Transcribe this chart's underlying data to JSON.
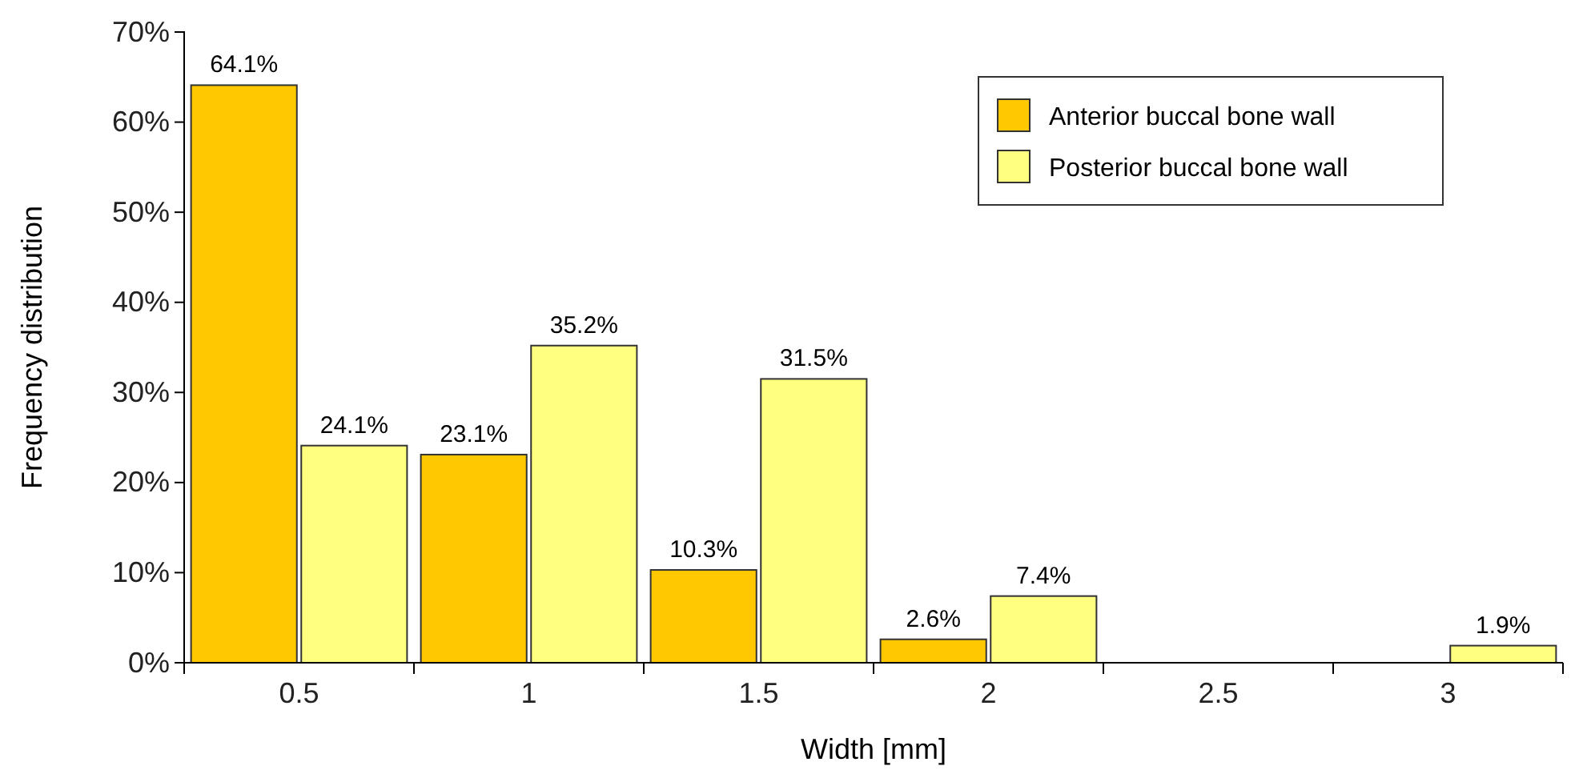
{
  "chart_data": {
    "type": "bar",
    "xlabel": "Width [mm]",
    "ylabel": "Frequency distribution",
    "categories": [
      "0.5",
      "1",
      "1.5",
      "2",
      "2.5",
      "3"
    ],
    "series": [
      {
        "name": "Anterior buccal bone wall",
        "color": "#ffc800",
        "values": [
          64.1,
          23.1,
          10.3,
          2.6,
          null,
          null
        ],
        "value_labels": [
          "64.1%",
          "23.1%",
          "10.3%",
          "2.6%",
          null,
          null
        ]
      },
      {
        "name": "Posterior buccal bone wall",
        "color": "#ffff80",
        "values": [
          24.1,
          35.2,
          31.5,
          7.4,
          null,
          1.9
        ],
        "value_labels": [
          "24.1%",
          "35.2%",
          "31.5%",
          "7.4%",
          null,
          "1.9%"
        ]
      }
    ],
    "ylim": [
      0,
      70
    ],
    "yticks": [
      {
        "value": 0,
        "label": "0%"
      },
      {
        "value": 10,
        "label": "10%"
      },
      {
        "value": 20,
        "label": "20%"
      },
      {
        "value": 30,
        "label": "30%"
      },
      {
        "value": 40,
        "label": "40%"
      },
      {
        "value": 50,
        "label": "50%"
      },
      {
        "value": 60,
        "label": "60%"
      },
      {
        "value": 70,
        "label": "70%"
      }
    ],
    "grid": false,
    "legend": "top right"
  }
}
